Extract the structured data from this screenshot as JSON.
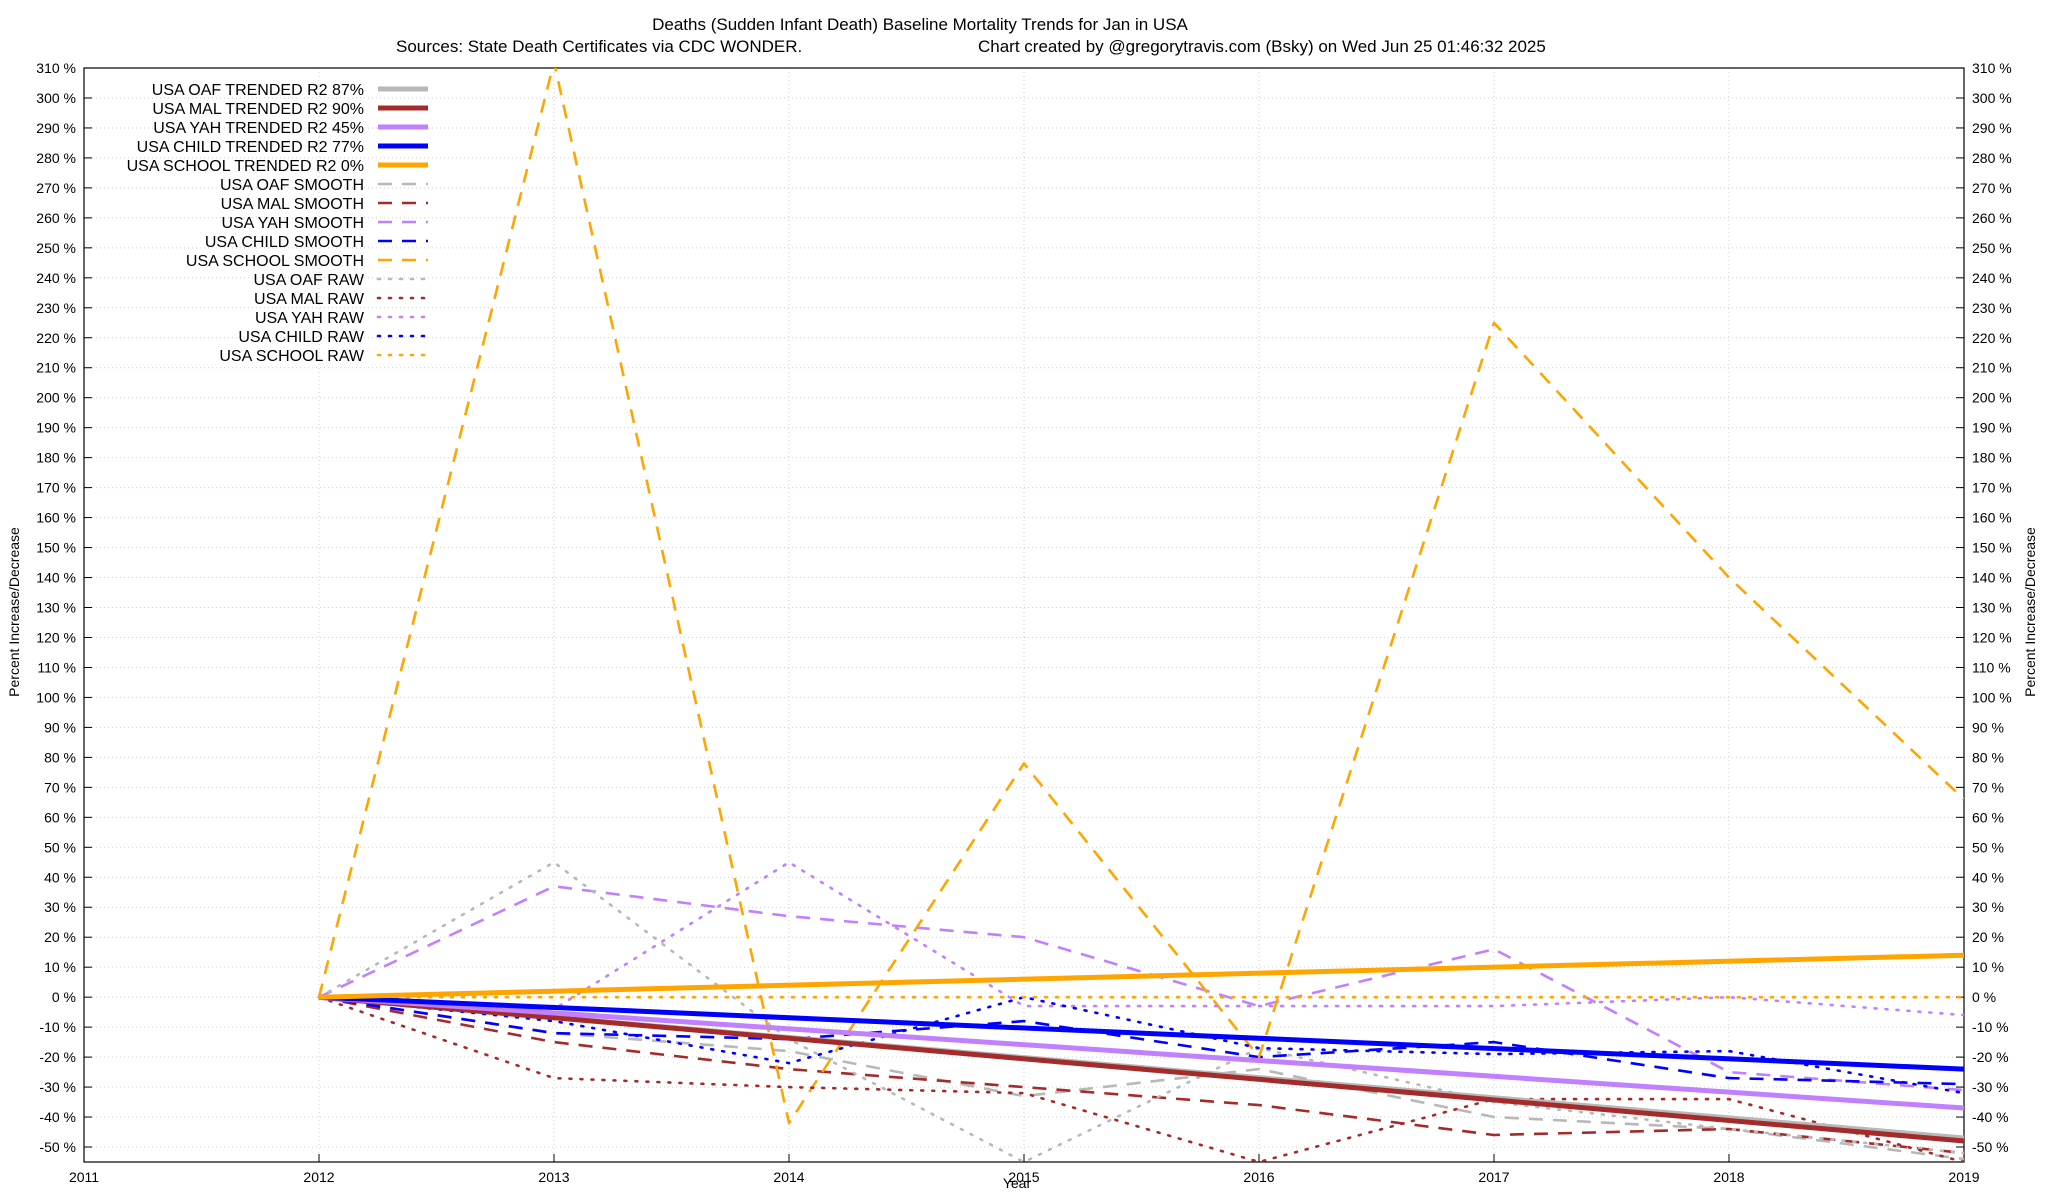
{
  "chart_data": {
    "type": "line",
    "title": "Deaths (Sudden Infant Death)  Baseline Mortality Trends for Jan in USA",
    "subtitle_left": "Sources: State Death Certificates via CDC WONDER.",
    "subtitle_right": "Chart created by @gregorytravis.com (Bsky) on Wed Jun 25 01:46:32 2025",
    "xlabel": "Year",
    "ylabel": "Percent Increase/Decrease",
    "ylabel_right": "Percent Increase/Decrease",
    "xlim": [
      2011,
      2019
    ],
    "ylim": [
      -55,
      310
    ],
    "x_ticks": [
      2011,
      2012,
      2013,
      2014,
      2015,
      2016,
      2017,
      2018,
      2019
    ],
    "x_tick_labels": [
      "2011",
      "2012",
      "2013",
      "2014",
      "2015",
      "2016",
      "2017",
      "2018",
      "2019"
    ],
    "y_ticks": [
      -50,
      -40,
      -30,
      -20,
      -10,
      0,
      10,
      20,
      30,
      40,
      50,
      60,
      70,
      80,
      90,
      100,
      110,
      120,
      130,
      140,
      150,
      160,
      170,
      180,
      190,
      200,
      210,
      220,
      230,
      240,
      250,
      260,
      270,
      280,
      290,
      300,
      310
    ],
    "y_tick_labels": [
      "-50 %",
      "-40 %",
      "-30 %",
      "-20 %",
      "-10 %",
      "0 %",
      "10 %",
      "20 %",
      "30 %",
      "40 %",
      "50 %",
      "60 %",
      "70 %",
      "80 %",
      "90 %",
      "100 %",
      "110 %",
      "120 %",
      "130 %",
      "140 %",
      "150 %",
      "160 %",
      "170 %",
      "180 %",
      "190 %",
      "200 %",
      "210 %",
      "220 %",
      "230 %",
      "240 %",
      "250 %",
      "260 %",
      "270 %",
      "280 %",
      "290 %",
      "300 %",
      "310 %"
    ],
    "grid": true,
    "legend_position": "top-left",
    "series": [
      {
        "name": "USA OAF TRENDED R2  87%",
        "style": "solid",
        "color": "#b8b8b8",
        "x": [
          2012,
          2019
        ],
        "values": [
          0,
          -47
        ]
      },
      {
        "name": "USA MAL TRENDED R2  90%",
        "style": "solid",
        "color": "#a52a2a",
        "x": [
          2012,
          2019
        ],
        "values": [
          0,
          -48
        ]
      },
      {
        "name": "USA YAH TRENDED R2  45%",
        "style": "solid",
        "color": "#c080ff",
        "x": [
          2012,
          2019
        ],
        "values": [
          0,
          -37
        ]
      },
      {
        "name": "USA CHILD TRENDED R2  77%",
        "style": "solid",
        "color": "#0000ff",
        "x": [
          2012,
          2019
        ],
        "values": [
          0,
          -24
        ]
      },
      {
        "name": "USA SCHOOL TRENDED R2   0%",
        "style": "solid",
        "color": "#ffa500",
        "x": [
          2012,
          2019
        ],
        "values": [
          0,
          14
        ]
      },
      {
        "name": "USA OAF SMOOTH",
        "style": "dashed",
        "color": "#b8b8b8",
        "x": [
          2012,
          2013,
          2014,
          2015,
          2016,
          2017,
          2018,
          2019
        ],
        "values": [
          0,
          -12,
          -18,
          -33,
          -24,
          -40,
          -44,
          -54
        ]
      },
      {
        "name": "USA MAL SMOOTH",
        "style": "dashed",
        "color": "#a52a2a",
        "x": [
          2012,
          2013,
          2014,
          2015,
          2016,
          2017,
          2018,
          2019
        ],
        "values": [
          0,
          -15,
          -24,
          -30,
          -36,
          -46,
          -44,
          -52
        ]
      },
      {
        "name": "USA YAH SMOOTH",
        "style": "dashed",
        "color": "#c080ff",
        "x": [
          2012,
          2013,
          2014,
          2015,
          2016,
          2017,
          2018,
          2019
        ],
        "values": [
          0,
          37,
          27,
          20,
          -3,
          16,
          -25,
          -31
        ]
      },
      {
        "name": "USA CHILD SMOOTH",
        "style": "dashed",
        "color": "#0000ff",
        "x": [
          2012,
          2013,
          2014,
          2015,
          2016,
          2017,
          2018,
          2019
        ],
        "values": [
          0,
          -12,
          -14,
          -8,
          -20,
          -15,
          -27,
          -29
        ]
      },
      {
        "name": "USA SCHOOL SMOOTH",
        "style": "dashed",
        "color": "#ffa500",
        "x": [
          2012,
          2013,
          2014,
          2015,
          2016,
          2017,
          2018,
          2019
        ],
        "values": [
          0,
          312,
          -42,
          78,
          -20,
          225,
          140,
          66
        ]
      },
      {
        "name": "USA OAF RAW",
        "style": "dotted",
        "color": "#b8b8b8",
        "x": [
          2012,
          2013,
          2014,
          2015,
          2016,
          2017,
          2018,
          2019
        ],
        "values": [
          0,
          45,
          -14,
          -55,
          -17,
          -35,
          -44,
          -52
        ]
      },
      {
        "name": "USA MAL RAW",
        "style": "dotted",
        "color": "#a52a2a",
        "x": [
          2012,
          2013,
          2014,
          2015,
          2016,
          2017,
          2018,
          2019
        ],
        "values": [
          0,
          -27,
          -30,
          -32,
          -55,
          -34,
          -34,
          -55
        ]
      },
      {
        "name": "USA YAH RAW",
        "style": "dotted",
        "color": "#c080ff",
        "x": [
          2012,
          2013,
          2014,
          2015,
          2016,
          2017,
          2018,
          2019
        ],
        "values": [
          0,
          -4,
          45,
          -3,
          -3,
          -3,
          0,
          -6
        ]
      },
      {
        "name": "USA CHILD RAW",
        "style": "dotted",
        "color": "#0000ff",
        "x": [
          2012,
          2013,
          2014,
          2015,
          2016,
          2017,
          2018,
          2019
        ],
        "values": [
          0,
          -8,
          -22,
          0,
          -17,
          -19,
          -18,
          -32
        ]
      },
      {
        "name": "USA SCHOOL RAW",
        "style": "dotted",
        "color": "#ffa500",
        "x": [
          2012,
          2013,
          2014,
          2015,
          2016,
          2017,
          2018,
          2019
        ],
        "values": [
          0,
          0,
          0,
          0,
          0,
          0,
          0,
          0
        ]
      }
    ]
  }
}
